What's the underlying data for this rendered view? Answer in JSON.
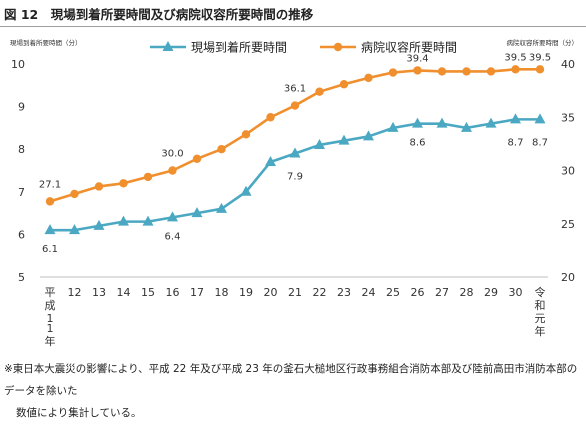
{
  "figure": {
    "title": "図 12　現場到着所要時間及び病院収容所要時間の推移",
    "note_lines": [
      "※東日本大震災の影響により、平成 22 年及び平成 23 年の釜石大槌地区行政事務組合消防本部及び陸前高田市消防本部のデータを除いた",
      "数値により集計している。"
    ]
  },
  "chart_data": {
    "type": "line",
    "left_axis_label": "現場到着所要時間（分）",
    "right_axis_label": "病院収容所要時間（分）",
    "y_left": {
      "range": [
        5,
        10
      ],
      "ticks": [
        "5",
        "6",
        "7",
        "8",
        "9",
        "10"
      ]
    },
    "y_right": {
      "range": [
        20,
        40
      ],
      "ticks": [
        "20",
        "25",
        "30",
        "35",
        "40"
      ]
    },
    "categories": [
      "平成11年",
      "12",
      "13",
      "14",
      "15",
      "16",
      "17",
      "18",
      "19",
      "20",
      "21",
      "22",
      "23",
      "24",
      "25",
      "26",
      "27",
      "28",
      "29",
      "30",
      "令和元年"
    ],
    "legend_position": "top",
    "grid": false,
    "series": [
      {
        "name": "現場到着所要時間",
        "axis": "left",
        "color": "#4ba8c2",
        "marker": "triangle",
        "values": [
          6.1,
          6.1,
          6.2,
          6.3,
          6.3,
          6.4,
          6.5,
          6.6,
          7.0,
          7.7,
          7.9,
          8.1,
          8.2,
          8.3,
          8.5,
          8.6,
          8.6,
          8.5,
          8.6,
          8.7,
          8.7
        ]
      },
      {
        "name": "病院収容所要時間",
        "axis": "right",
        "color": "#f08f2e",
        "marker": "circle",
        "values": [
          27.1,
          27.8,
          28.5,
          28.8,
          29.4,
          30.0,
          31.1,
          32.0,
          33.4,
          35.0,
          36.1,
          37.4,
          38.1,
          38.7,
          39.2,
          39.4,
          39.3,
          39.3,
          39.3,
          39.5,
          39.5
        ]
      }
    ],
    "annotations": [
      {
        "series": 1,
        "index": 0,
        "label": "27.1"
      },
      {
        "series": 1,
        "index": 5,
        "label": "30.0"
      },
      {
        "series": 1,
        "index": 10,
        "label": "36.1"
      },
      {
        "series": 1,
        "index": 15,
        "label": "39.4"
      },
      {
        "series": 1,
        "index": 19,
        "label": "39.5"
      },
      {
        "series": 1,
        "index": 20,
        "label": "39.5"
      },
      {
        "series": 0,
        "index": 0,
        "label": "6.1"
      },
      {
        "series": 0,
        "index": 5,
        "label": "6.4"
      },
      {
        "series": 0,
        "index": 10,
        "label": "7.9"
      },
      {
        "series": 0,
        "index": 15,
        "label": "8.6"
      },
      {
        "series": 0,
        "index": 19,
        "label": "8.7"
      },
      {
        "series": 0,
        "index": 20,
        "label": "8.7"
      }
    ]
  }
}
